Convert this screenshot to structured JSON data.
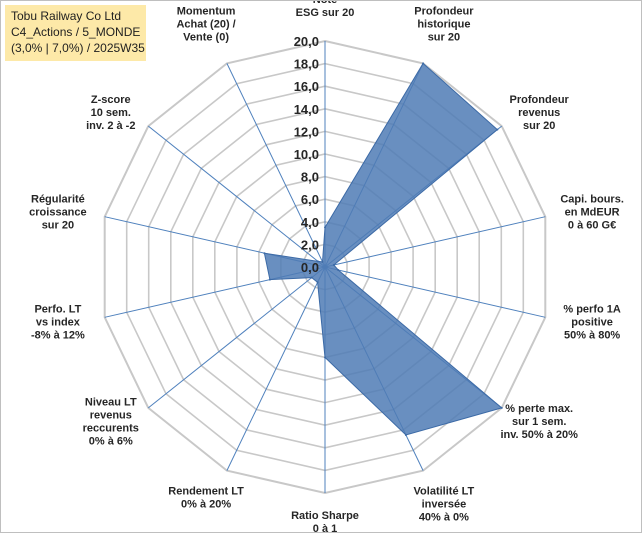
{
  "title_box": {
    "line1": "Tobu Railway Co Ltd",
    "line2": "C4_Actions / 5_MONDE",
    "line3": "(3,0% | 7,0%) / 2025W35"
  },
  "colors": {
    "fill": "#4f7bb5",
    "stroke": "#3c6aa6",
    "grid": "#c8c8c8",
    "spoke": "#4f81bd",
    "title_bg": "#fde9a8"
  },
  "chart_data": {
    "type": "radar",
    "rmin": 0,
    "rmax": 20,
    "tick_step": 2,
    "tick_labels": [
      "0,0",
      "2,0",
      "4,0",
      "6,0",
      "8,0",
      "10,0",
      "12,0",
      "14,0",
      "16,0",
      "18,0",
      "20,0"
    ],
    "grid": true,
    "axes": [
      {
        "label": [
          "Note",
          "ESG sur 20"
        ],
        "value": 3.5
      },
      {
        "label": [
          "Profondeur",
          "historique",
          "sur 20"
        ],
        "value": 20
      },
      {
        "label": [
          "Profondeur",
          "revenus",
          "sur 20"
        ],
        "value": 19.5
      },
      {
        "label": [
          "Capi. bours.",
          "en MdEUR",
          "0 à 60 G€"
        ],
        "value": 0.8
      },
      {
        "label": [
          "% perfo 1A",
          "positive",
          "50% à 80%"
        ],
        "value": 1.2
      },
      {
        "label": [
          "% perte max.",
          "sur 1 sem.",
          "inv. 50% à 20%"
        ],
        "value": 20
      },
      {
        "label": [
          "Volatilité LT",
          "inversée",
          "40% à 0%"
        ],
        "value": 16.5
      },
      {
        "label": [
          "Ratio Sharpe",
          "0 à 1"
        ],
        "value": 8
      },
      {
        "label": [
          "Rendement LT",
          "0% à 20%"
        ],
        "value": 1.5
      },
      {
        "label": [
          "Niveau LT",
          "revenus",
          "reccurents",
          "0% à 6%"
        ],
        "value": 1.5
      },
      {
        "label": [
          "Perfo. LT",
          "vs index",
          "-8% à 12%"
        ],
        "value": 5
      },
      {
        "label": [
          "Régularité",
          "croissance",
          "sur 20"
        ],
        "value": 5.5
      },
      {
        "label": [
          "Z-score",
          "10 sem.",
          "inv. 2 à -2"
        ],
        "value": 0.8
      },
      {
        "label": [
          "Momentum",
          "Achat (20) /",
          "Vente (0)"
        ],
        "value": 0.5
      }
    ]
  }
}
